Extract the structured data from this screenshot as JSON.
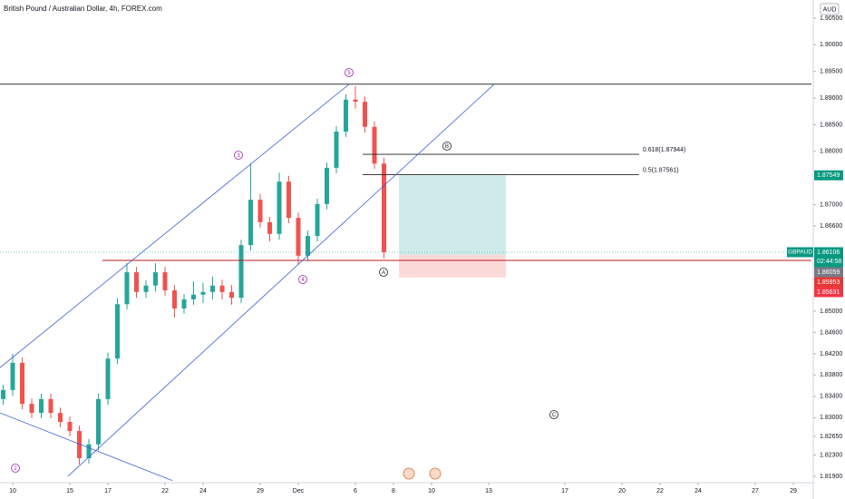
{
  "chart_data": {
    "type": "candlestick",
    "title": "British Pound / Australian Dollar, 4h, FOREX.com",
    "currency": "AUD",
    "symbol": "GBPAUD",
    "countdown": "02:44:58",
    "up_color": "#26a69a",
    "down_color": "#ef5350",
    "x": [
      -0.5,
      0,
      0.5,
      1,
      1.5,
      2,
      2.5,
      3,
      3.5,
      4,
      4.5,
      5,
      5.5,
      6,
      6.5,
      7,
      7.5,
      8,
      8.5,
      9,
      9.5,
      10,
      10.5,
      11,
      11.5,
      12,
      12.5,
      13,
      13.5,
      14,
      14.5,
      15,
      15.5,
      16,
      16.5,
      17,
      17.5,
      18,
      18.5,
      19,
      19.5
    ],
    "open": [
      1.8335,
      1.8352,
      1.8403,
      1.8326,
      1.8309,
      1.8335,
      1.8309,
      1.8292,
      1.8275,
      1.8224,
      1.825,
      1.8335,
      1.8411,
      1.8513,
      1.8573,
      1.8536,
      1.8548,
      1.8573,
      1.8539,
      1.8505,
      1.8522,
      1.8531,
      1.8536,
      1.8548,
      1.8536,
      1.8525,
      1.8624,
      1.8709,
      1.8667,
      1.8645,
      1.8743,
      1.8675,
      1.8604,
      1.8641,
      1.8701,
      1.8769,
      1.8837,
      1.8897,
      1.8893,
      1.8846,
      1.8777
    ],
    "high": [
      1.8362,
      1.842,
      1.8413,
      1.8336,
      1.8345,
      1.8345,
      1.8319,
      1.8302,
      1.8285,
      1.826,
      1.8345,
      1.8422,
      1.8524,
      1.859,
      1.8583,
      1.8558,
      1.859,
      1.8583,
      1.8549,
      1.8532,
      1.8556,
      1.8553,
      1.8565,
      1.8559,
      1.8549,
      1.8634,
      1.8777,
      1.872,
      1.8677,
      1.876,
      1.8754,
      1.8685,
      1.8651,
      1.8711,
      1.8779,
      1.8847,
      1.8907,
      1.8922,
      1.8903,
      1.8856,
      1.8788
    ],
    "low": [
      1.8324,
      1.8341,
      1.8316,
      1.8299,
      1.8299,
      1.8299,
      1.8282,
      1.8265,
      1.8212,
      1.8214,
      1.8239,
      1.8324,
      1.8401,
      1.8503,
      1.8525,
      1.8525,
      1.8537,
      1.8529,
      1.8488,
      1.8495,
      1.8512,
      1.8515,
      1.8522,
      1.8522,
      1.8512,
      1.8515,
      1.8614,
      1.8657,
      1.8631,
      1.8634,
      1.8665,
      1.8587,
      1.8594,
      1.8631,
      1.8691,
      1.8759,
      1.8827,
      1.888,
      1.8835,
      1.8767,
      1.8599
    ],
    "close": [
      1.8352,
      1.8403,
      1.8326,
      1.8309,
      1.8335,
      1.8309,
      1.8292,
      1.8275,
      1.8224,
      1.825,
      1.8335,
      1.8411,
      1.8513,
      1.8573,
      1.8536,
      1.8548,
      1.8573,
      1.8539,
      1.8505,
      1.8522,
      1.8531,
      1.8536,
      1.8548,
      1.8536,
      1.8525,
      1.8624,
      1.8709,
      1.8667,
      1.8645,
      1.8743,
      1.8675,
      1.8604,
      1.8641,
      1.8701,
      1.8769,
      1.8837,
      1.8897,
      1.8893,
      1.8846,
      1.8777,
      1.86106
    ],
    "xlim": [
      -0.667,
      41.952
    ],
    "ylim": [
      1.81644,
      1.9084
    ],
    "xticks": [
      {
        "value": 0,
        "label": "10"
      },
      {
        "value": 3,
        "label": "15"
      },
      {
        "value": 5,
        "label": "17"
      },
      {
        "value": 8,
        "label": "22"
      },
      {
        "value": 10,
        "label": "24"
      },
      {
        "value": 13,
        "label": "29"
      },
      {
        "value": 15,
        "label": "Dec"
      },
      {
        "value": 18,
        "label": "6"
      },
      {
        "value": 20,
        "label": "8"
      },
      {
        "value": 22,
        "label": "10"
      },
      {
        "value": 25,
        "label": "13"
      },
      {
        "value": 29,
        "label": "17"
      },
      {
        "value": 32,
        "label": "20"
      },
      {
        "value": 34,
        "label": "22"
      },
      {
        "value": 36,
        "label": "24"
      },
      {
        "value": 39,
        "label": "27"
      },
      {
        "value": 41,
        "label": "29"
      }
    ],
    "yticks": [
      {
        "value": 1.905,
        "label": "1.90500"
      },
      {
        "value": 1.9,
        "label": "1.90000"
      },
      {
        "value": 1.895,
        "label": "1.89500"
      },
      {
        "value": 1.89,
        "label": "1.89000"
      },
      {
        "value": 1.885,
        "label": "1.88500"
      },
      {
        "value": 1.88,
        "label": "1.88000"
      },
      {
        "value": 1.87,
        "label": "1.87000"
      },
      {
        "value": 1.866,
        "label": "1.86600"
      },
      {
        "value": 1.85,
        "label": "1.85000"
      },
      {
        "value": 1.846,
        "label": "1.84600"
      },
      {
        "value": 1.842,
        "label": "1.84200"
      },
      {
        "value": 1.838,
        "label": "1.83800"
      },
      {
        "value": 1.834,
        "label": "1.83400"
      },
      {
        "value": 1.83,
        "label": "1.83000"
      },
      {
        "value": 1.8265,
        "label": "1.82650"
      },
      {
        "value": 1.823,
        "label": "1.82300"
      },
      {
        "value": 1.819,
        "label": "1.81900"
      }
    ],
    "trendlines": [
      {
        "x": [
          -0.667,
          17.67
        ],
        "y": [
          1.8394,
          1.8926
        ],
        "color": "#3f5fd8"
      },
      {
        "x": [
          2.9,
          25.29
        ],
        "y": [
          1.819,
          1.8926
        ],
        "color": "#3f5fd8"
      },
      {
        "x": [
          -0.667,
          8.38
        ],
        "y": [
          1.8309,
          1.8182
        ],
        "color": "#3f5fd8"
      }
    ],
    "levels": [
      {
        "value": 1.8926,
        "from": -0.667,
        "color": "#333333"
      },
      {
        "value": 1.85953,
        "from": 4.71,
        "color": "#b71c1c"
      }
    ],
    "fib_levels": [
      {
        "value": 1.87944,
        "label": "0.618(1.87944)",
        "from": 18.38,
        "to": 32.9
      },
      {
        "value": 1.87561,
        "label": "0.5(1.87561)",
        "from": 18.38,
        "to": 32.9
      }
    ],
    "position": {
      "target": 1.87549,
      "entry": 1.86059,
      "stop": 1.85631,
      "from": 20.29,
      "to": 25.9
    },
    "waves": [
      "5",
      "3",
      "4",
      "2",
      "A",
      "B",
      "C"
    ],
    "price_labels": [
      {
        "value": 1.87549,
        "label": "1.87549",
        "color": "#089981"
      },
      {
        "value": 1.86106,
        "label": "1.86106",
        "color": "#089981"
      },
      {
        "value": 1.86059,
        "label": "1.86059",
        "color": "#787b86"
      },
      {
        "value": 1.85953,
        "label": "1.85953",
        "color": "#e53935"
      },
      {
        "value": 1.85631,
        "label": "1.85631",
        "color": "#f23645"
      }
    ]
  }
}
